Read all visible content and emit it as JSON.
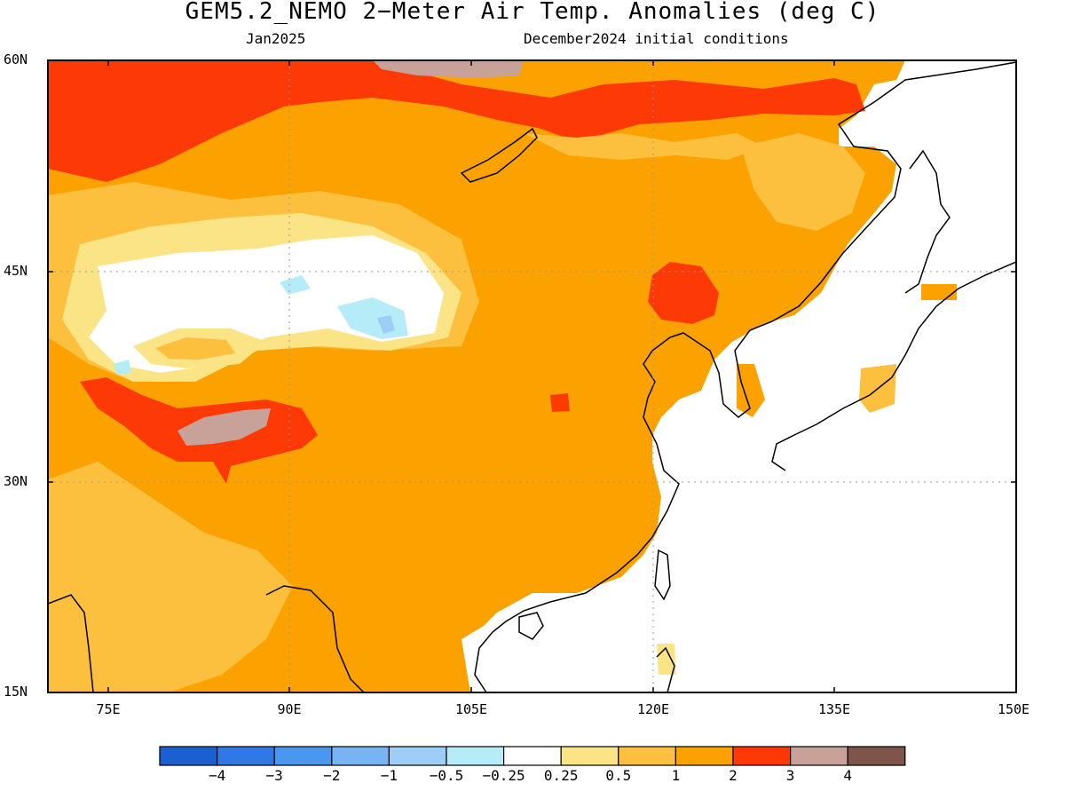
{
  "title": "GEM5.2_NEMO 2−Meter Air Temp. Anomalies (deg C)",
  "subtitle_left": "Jan2025",
  "subtitle_right": "December2024 initial conditions",
  "map": {
    "lat_labels": [
      "60N",
      "45N",
      "30N",
      "15N"
    ],
    "lat_values": [
      60,
      45,
      30,
      15
    ],
    "lon_labels": [
      "75E",
      "90E",
      "105E",
      "120E",
      "135E",
      "150E"
    ],
    "lon_values": [
      75,
      90,
      105,
      120,
      135,
      150
    ],
    "lon_range": [
      70,
      150
    ],
    "lat_range": [
      15,
      60
    ],
    "gridlines": "dotted"
  },
  "colorbar": {
    "labels": [
      "−4",
      "−3",
      "−2",
      "−1",
      "−0.5",
      "−0.25",
      "0.25",
      "0.5",
      "1",
      "2",
      "3",
      "4"
    ],
    "colors": [
      "#1c5fd0",
      "#2f78e6",
      "#4a97ef",
      "#78b4f3",
      "#9ecef7",
      "#b5ecf8",
      "#ffffff",
      "#fbe486",
      "#fdbf3e",
      "#fba200",
      "#fd3a05",
      "#c8a198",
      "#7e5548"
    ]
  }
}
